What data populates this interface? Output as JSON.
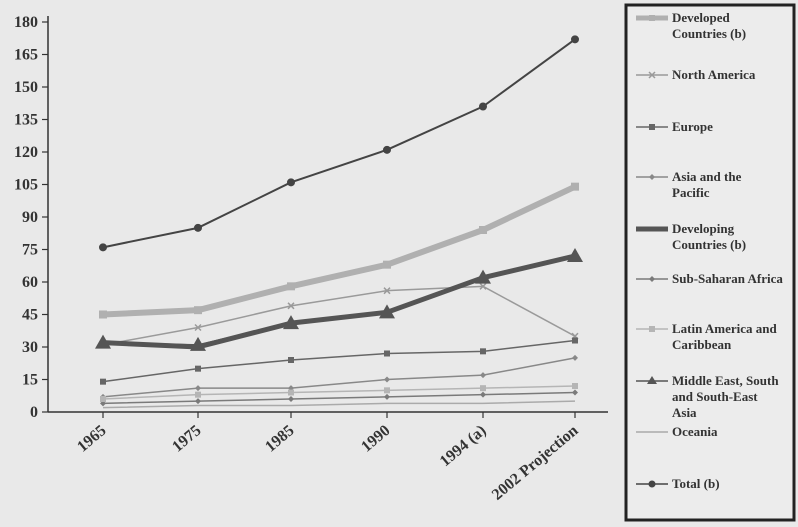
{
  "chart_data": {
    "type": "line",
    "categories": [
      "1965",
      "1975",
      "1985",
      "1990",
      "1994 (a)",
      "2002 Projection"
    ],
    "ylim": [
      0,
      180
    ],
    "yticks": [
      0,
      15,
      30,
      45,
      60,
      75,
      90,
      105,
      120,
      135,
      150,
      165,
      180
    ],
    "grid": false,
    "legend_position": "right",
    "series": [
      {
        "name": "Developed Countries (b)",
        "values": [
          45,
          47,
          58,
          68,
          84,
          104
        ],
        "color": "#b0b0b0",
        "marker": "square",
        "bold": true
      },
      {
        "name": "North America",
        "values": [
          31,
          39,
          49,
          56,
          58,
          35
        ],
        "color": "#9a9a9a",
        "marker": "x",
        "bold": false
      },
      {
        "name": "Europe",
        "values": [
          14,
          20,
          24,
          27,
          28,
          33
        ],
        "color": "#666666",
        "marker": "square",
        "bold": false
      },
      {
        "name": "Asia and the Pacific",
        "values": [
          7,
          11,
          11,
          15,
          17,
          25
        ],
        "color": "#888888",
        "marker": "diamond",
        "bold": false
      },
      {
        "name": "Developing Countries (b)",
        "values": [
          32,
          30,
          41,
          46,
          62,
          72
        ],
        "color": "#555555",
        "marker": "none",
        "bold": true
      },
      {
        "name": "Sub-Saharan Africa",
        "values": [
          4,
          5,
          6,
          7,
          8,
          9
        ],
        "color": "#7a7a7a",
        "marker": "diamond",
        "bold": false
      },
      {
        "name": "Latin America and Caribbean",
        "values": [
          6,
          8,
          9,
          10,
          11,
          12
        ],
        "color": "#b5b5b5",
        "marker": "square",
        "bold": false
      },
      {
        "name": "Middle East, South and South-East Asia",
        "values": [
          32,
          31,
          41,
          46,
          62,
          72
        ],
        "color": "#555555",
        "marker": "triangle",
        "bold": false
      },
      {
        "name": "Oceania",
        "values": [
          2,
          3,
          3,
          4,
          4,
          5
        ],
        "color": "#aaaaaa",
        "marker": "none",
        "bold": false
      },
      {
        "name": "Total (b)",
        "values": [
          76,
          85,
          106,
          121,
          141,
          172
        ],
        "color": "#444444",
        "marker": "circle",
        "bold": false
      }
    ]
  }
}
